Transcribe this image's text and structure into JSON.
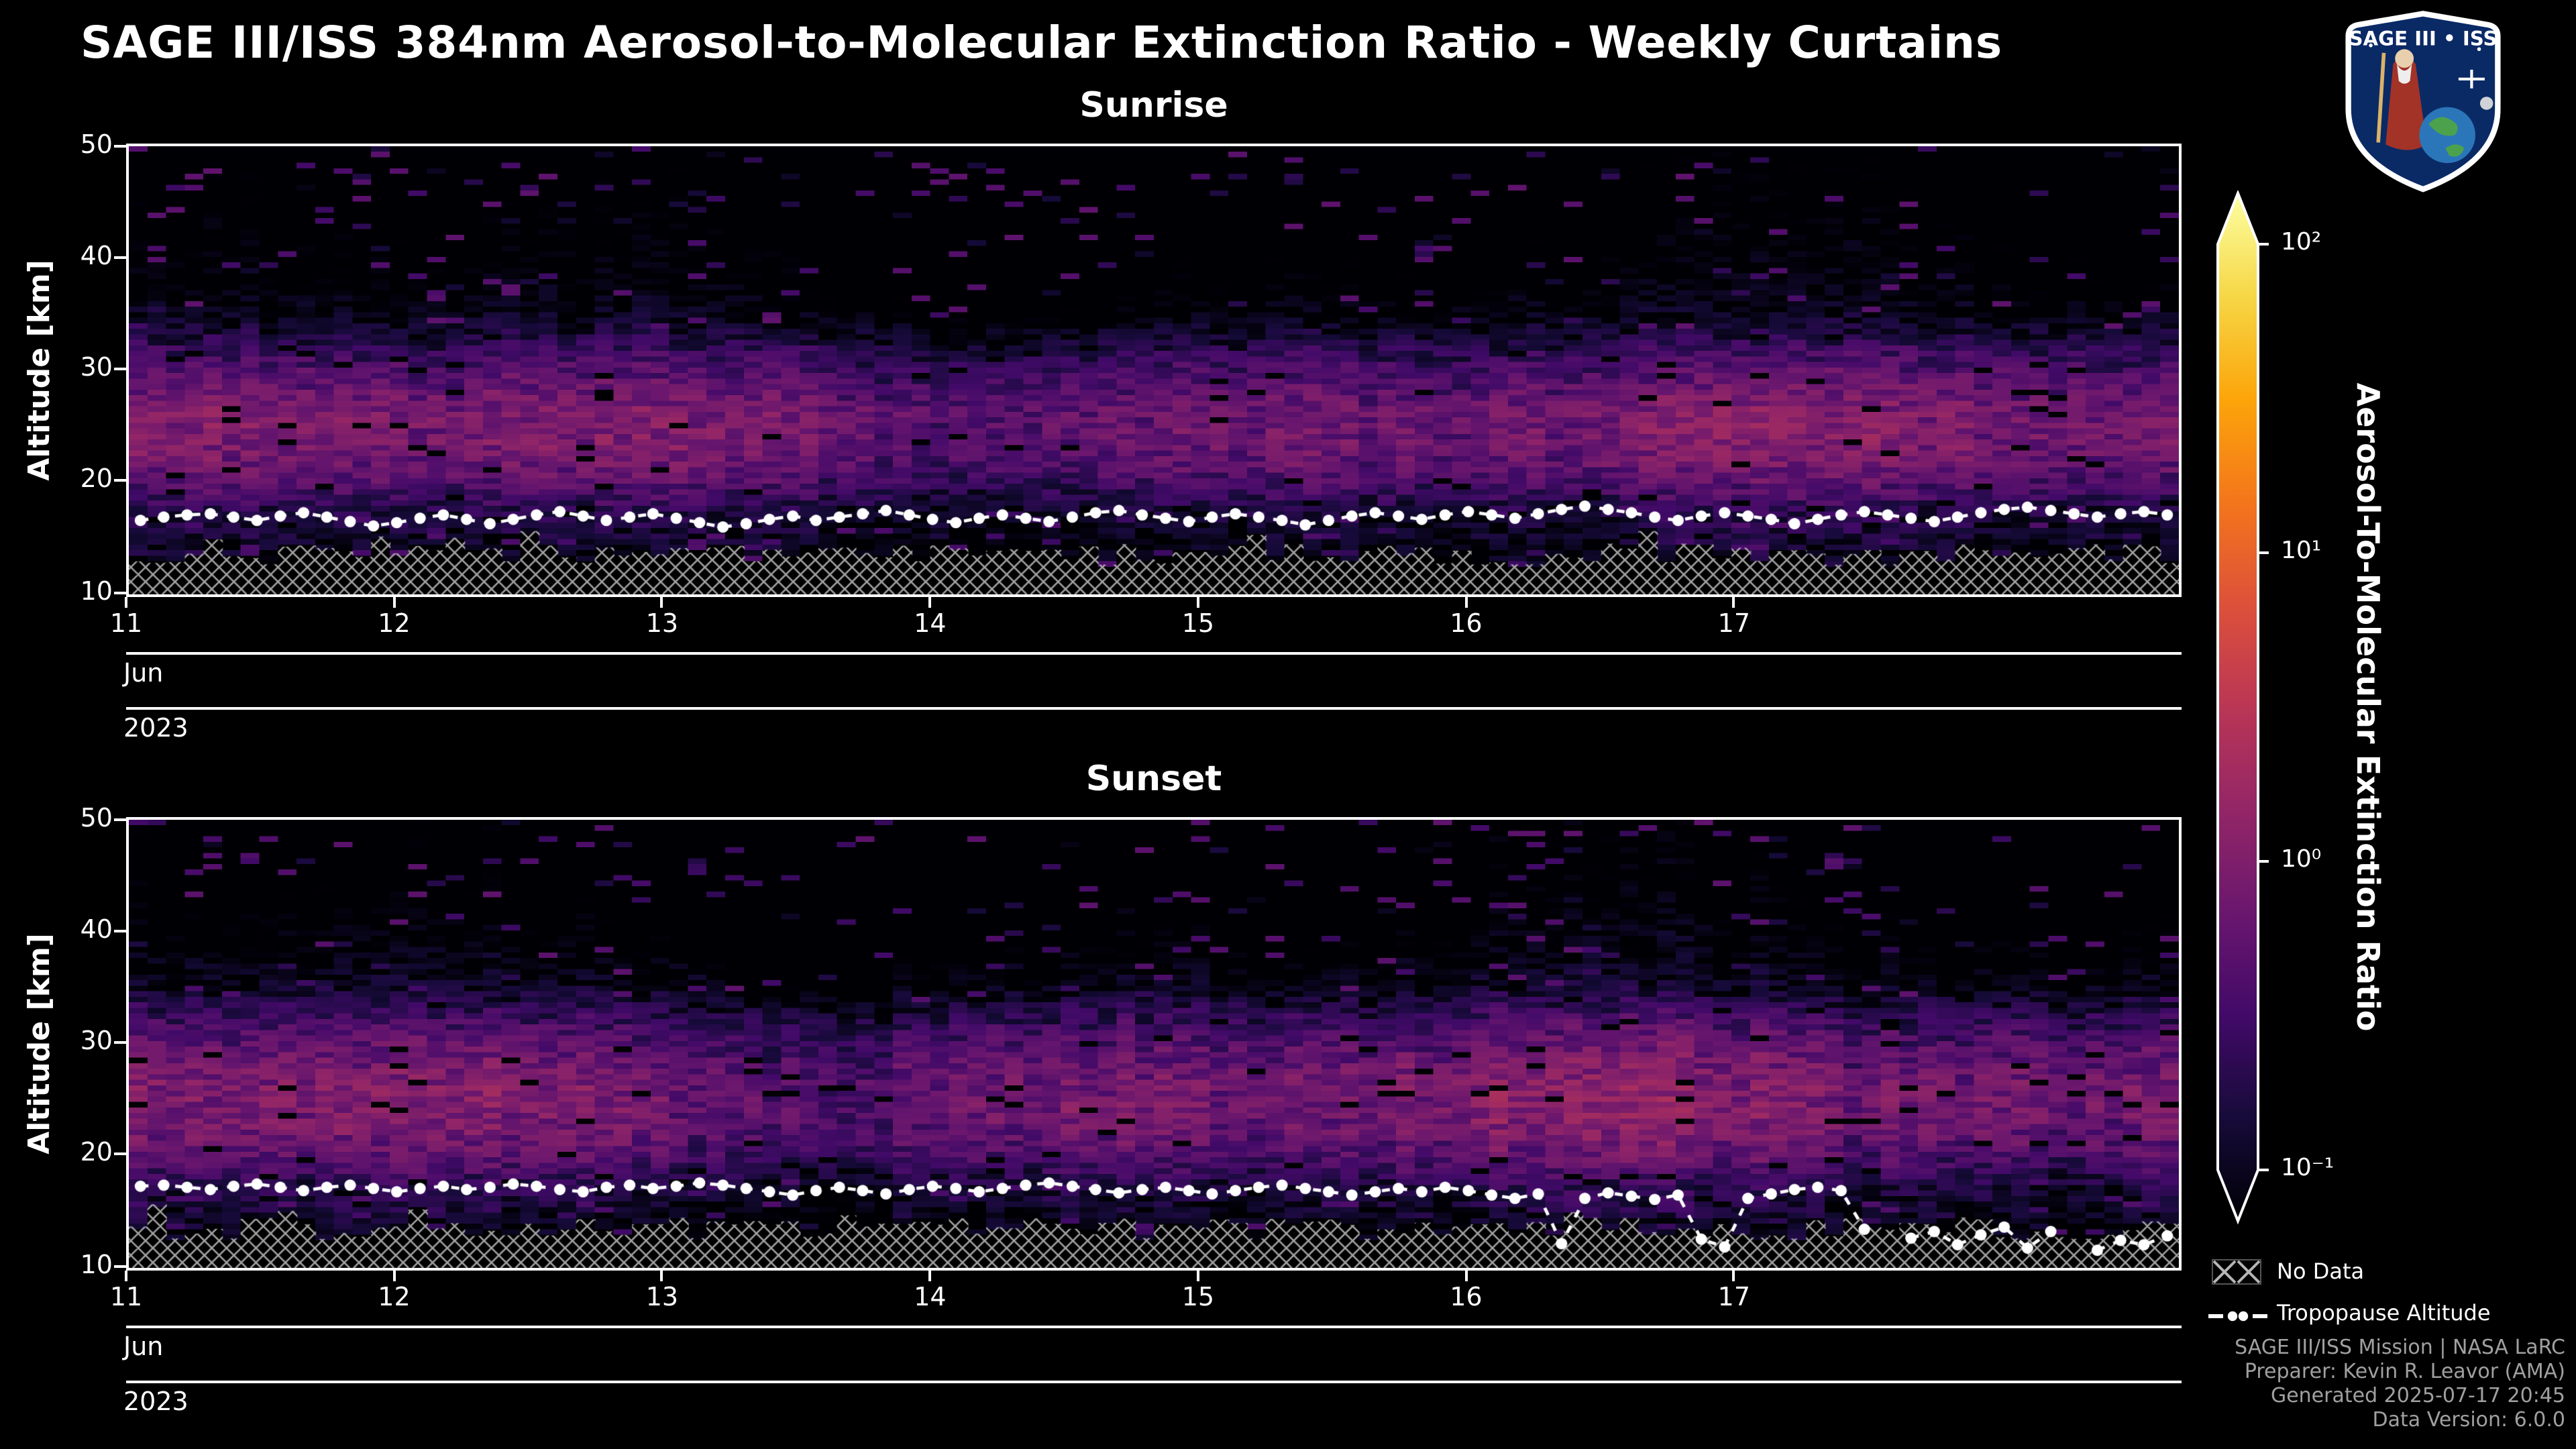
{
  "page": {
    "title": "SAGE III/ISS 384nm Aerosol-to-Molecular Extinction Ratio - Weekly Curtains"
  },
  "logo": {
    "title": "SAGE III • ISS"
  },
  "colorbar": {
    "label": "Aerosol-To-Molecular Extinction Ratio",
    "scale": "log",
    "min": 0.1,
    "max": 100,
    "colormap": "inferno",
    "tick_labels": [
      "10²",
      "10¹",
      "10⁰",
      "10⁻¹"
    ]
  },
  "legend": {
    "no_data_label": "No Data",
    "tropopause_label": "Tropopause Altitude"
  },
  "credits": {
    "lines": [
      "SAGE III/ISS Mission | NASA LaRC",
      "Preparer: Kevin R. Leavor (AMA)",
      "Generated 2025-07-17 20:45",
      "Data Version: 6.0.0"
    ]
  },
  "chart_data": [
    {
      "type": "heatmap",
      "title": "Sunrise",
      "ylabel": "Altitude [km]",
      "y_ticks": [
        10,
        20,
        30,
        40,
        50
      ],
      "y_range_km": [
        9.6,
        50.2
      ],
      "x_ticks_days": [
        11,
        12,
        13,
        14,
        15,
        16,
        17
      ],
      "x_range_days": [
        11,
        18.67
      ],
      "x_axis_month": "Jun",
      "x_axis_year": "2023",
      "wavelength_nm": 384,
      "value_scale": "log10",
      "value_range": [
        0.1,
        100
      ],
      "aerosol_layer_profile": {
        "altitude_km": [
          9.6,
          14,
          17,
          19,
          21,
          23,
          26,
          29,
          31,
          33,
          35,
          38,
          42,
          46,
          50
        ],
        "mean_extinction_ratio": [
          0.12,
          0.13,
          0.2,
          0.4,
          0.65,
          0.85,
          0.9,
          0.55,
          0.35,
          0.18,
          0.1,
          0.07,
          0.06,
          0.05,
          0.05
        ]
      },
      "tropopause_altitude_km": [
        16.3,
        16.6,
        16.8,
        16.9,
        16.6,
        16.3,
        16.7,
        17.0,
        16.6,
        16.2,
        15.8,
        16.1,
        16.5,
        16.8,
        16.4,
        16.0,
        16.4,
        16.8,
        17.1,
        16.7,
        16.3,
        16.6,
        16.9,
        16.5,
        16.1,
        15.7,
        16.0,
        16.4,
        16.7,
        16.3,
        16.6,
        16.9,
        17.2,
        16.8,
        16.4,
        16.1,
        16.5,
        16.8,
        16.5,
        16.2,
        16.6,
        17.0,
        17.2,
        16.8,
        16.5,
        16.2,
        16.6,
        16.9,
        16.6,
        16.3,
        15.9,
        16.3,
        16.7,
        17.0,
        16.7,
        16.4,
        16.8,
        17.1,
        16.8,
        16.5,
        16.9,
        17.3,
        17.6,
        17.3,
        17.0,
        16.6,
        16.3,
        16.7,
        17.0,
        16.7,
        16.4,
        16.0,
        16.4,
        16.8,
        17.1,
        16.8,
        16.5,
        16.2,
        16.6,
        17.0,
        17.3,
        17.5,
        17.2,
        16.9,
        16.6,
        16.9,
        17.1,
        16.8
      ],
      "no_data_region": "hatched, below approx 12.5-15 km"
    },
    {
      "type": "heatmap",
      "title": "Sunset",
      "ylabel": "Altitude [km]",
      "y_ticks": [
        10,
        20,
        30,
        40,
        50
      ],
      "y_range_km": [
        9.6,
        50.2
      ],
      "x_ticks_days": [
        11,
        12,
        13,
        14,
        15,
        16,
        17
      ],
      "x_range_days": [
        11,
        18.67
      ],
      "x_axis_month": "Jun",
      "x_axis_year": "2023",
      "wavelength_nm": 384,
      "value_scale": "log10",
      "value_range": [
        0.1,
        100
      ],
      "aerosol_layer_profile": {
        "altitude_km": [
          9.6,
          14,
          17,
          19,
          21,
          23,
          26,
          29,
          31,
          33,
          35,
          38,
          42,
          46,
          50
        ],
        "mean_extinction_ratio": [
          0.12,
          0.14,
          0.22,
          0.45,
          0.7,
          0.9,
          0.95,
          0.65,
          0.45,
          0.25,
          0.12,
          0.08,
          0.06,
          0.05,
          0.05
        ]
      },
      "tropopause_altitude_km": [
        17.0,
        17.1,
        16.9,
        16.7,
        17.0,
        17.2,
        16.9,
        16.6,
        16.9,
        17.1,
        16.8,
        16.5,
        16.8,
        17.0,
        16.7,
        16.9,
        17.2,
        17.0,
        16.7,
        16.5,
        16.9,
        17.1,
        16.8,
        17.0,
        17.3,
        17.1,
        16.8,
        16.5,
        16.2,
        16.6,
        16.9,
        16.6,
        16.3,
        16.7,
        17.0,
        16.8,
        16.5,
        16.8,
        17.1,
        17.3,
        17.0,
        16.7,
        16.4,
        16.7,
        16.9,
        16.6,
        16.3,
        16.6,
        16.9,
        17.1,
        16.8,
        16.5,
        16.2,
        16.5,
        16.8,
        16.5,
        16.9,
        16.6,
        16.2,
        15.9,
        16.3,
        11.8,
        15.9,
        16.4,
        16.1,
        15.8,
        16.2,
        12.2,
        11.5,
        15.9,
        16.3,
        16.7,
        16.9,
        16.6,
        13.1,
        null,
        12.3,
        12.9,
        11.7,
        12.6,
        13.3,
        11.4,
        12.9,
        null,
        11.2,
        12.1,
        11.7,
        12.5
      ],
      "no_data_region": "hatched, below approx 12.5-15 km"
    }
  ],
  "render": {
    "nx": 110,
    "ny": 81,
    "seeds": [
      1234567,
      7654321
    ],
    "colormap_stops": [
      [
        0.0,
        0,
        0,
        4
      ],
      [
        0.1,
        22,
        11,
        57
      ],
      [
        0.2,
        66,
        10,
        104
      ],
      [
        0.3,
        106,
        23,
        110
      ],
      [
        0.4,
        147,
        38,
        103
      ],
      [
        0.5,
        186,
        54,
        85
      ],
      [
        0.6,
        221,
        81,
        58
      ],
      [
        0.7,
        243,
        118,
        27
      ],
      [
        0.8,
        252,
        165,
        10
      ],
      [
        0.9,
        246,
        215,
        70
      ],
      [
        1.0,
        252,
        255,
        164
      ]
    ]
  }
}
